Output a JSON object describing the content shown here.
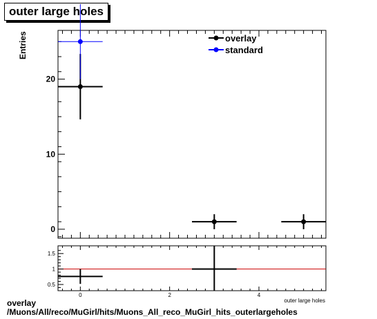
{
  "title": "outer large holes",
  "chart_data": [
    {
      "type": "scatter",
      "ylabel": "Entries",
      "xlim": [
        -0.5,
        5.5
      ],
      "ylim": [
        -1.2,
        26.5
      ],
      "yticks": [
        0,
        10,
        20
      ],
      "x_bin_width": 1,
      "legend_position": "top-right",
      "series": [
        {
          "name": "overlay",
          "color": "#000000",
          "points": [
            {
              "x": 0,
              "y": 19,
              "yerr": 4.36
            },
            {
              "x": 3,
              "y": 1,
              "yerr": 1
            },
            {
              "x": 5,
              "y": 1,
              "yerr": 1
            }
          ]
        },
        {
          "name": "standard",
          "color": "#0000ff",
          "points": [
            {
              "x": 0,
              "y": 25,
              "yerr": 5
            }
          ]
        }
      ]
    },
    {
      "type": "scatter",
      "xlabel": "outer large holes",
      "xlim": [
        -0.5,
        5.5
      ],
      "ylim": [
        0.3,
        1.75
      ],
      "yticks": [
        "0.5",
        "1",
        "1.5"
      ],
      "xticks": [
        "0",
        "2",
        "4"
      ],
      "reference_line": 1,
      "reference_color": "#cc0000",
      "series": [
        {
          "color": "#000000",
          "points": [
            {
              "x": 0,
              "y": 0.76,
              "yerr": 0.24
            },
            {
              "x": 3,
              "y": 1.0,
              "yerr": 1.0
            }
          ]
        }
      ]
    }
  ],
  "caption_line1": "overlay",
  "caption_line2": "/Muons/All/reco/MuGirl/hits/Muons_All_reco_MuGirl_hits_outerlargeholes"
}
